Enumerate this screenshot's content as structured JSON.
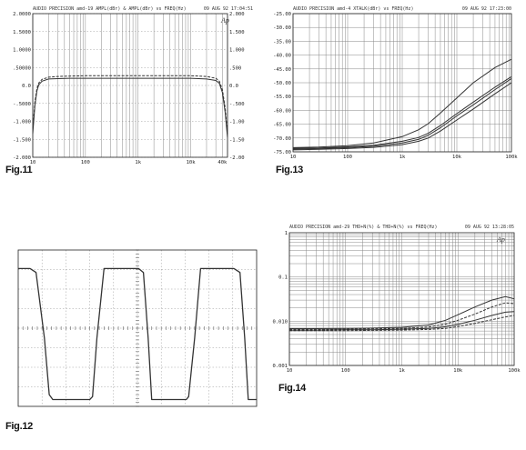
{
  "captions": {
    "fig11": "Fig.11",
    "fig12": "Fig.12",
    "fig13": "Fig.13",
    "fig14": "Fig.14"
  },
  "chart_data": [
    {
      "id": "fig11",
      "type": "line",
      "header_left": "AUDIO PRECISION amd-19 AMPL(dBr) & AMPL(dBr) vs FREQ(Hz)",
      "header_right": "09 AUG 92 17:04:51",
      "logo": "Ap",
      "xscale": "log",
      "xlim": [
        10,
        50000
      ],
      "ylim": [
        -2,
        2
      ],
      "y2lim": [
        -2,
        2
      ],
      "x_ticks": [
        "10",
        "100",
        "1k",
        "10k",
        "40k"
      ],
      "y_ticks": [
        "2.0000",
        "1.5000",
        "1.0000",
        ".50000",
        "0.0",
        "-.5000",
        "-1.000",
        "-1.500",
        "-2.000"
      ],
      "y2_ticks": [
        "2.000",
        "1.500",
        "1.000",
        ".500",
        "0.0",
        "-.500",
        "-1.00",
        "-1.50",
        "-2.00"
      ],
      "x": [
        10,
        11,
        12,
        13,
        15,
        20,
        30,
        50,
        100,
        300,
        1000,
        3000,
        10000,
        20000,
        30000,
        35000,
        40000,
        45000,
        50000
      ],
      "series": [
        {
          "values": [
            -1.35,
            -0.55,
            -0.15,
            0.02,
            0.12,
            0.18,
            0.19,
            0.2,
            0.2,
            0.2,
            0.2,
            0.2,
            0.2,
            0.18,
            0.14,
            0.06,
            -0.2,
            -0.75,
            -1.45
          ],
          "color": "#333333"
        },
        {
          "values": [
            -1.2,
            -0.45,
            -0.08,
            0.07,
            0.17,
            0.23,
            0.25,
            0.26,
            0.27,
            0.27,
            0.27,
            0.27,
            0.27,
            0.25,
            0.2,
            0.12,
            -0.12,
            -0.62,
            -1.35
          ],
          "color": "#666666"
        }
      ]
    },
    {
      "id": "fig12",
      "type": "line",
      "trace": "square wave",
      "x_divisions": 10,
      "y_divisions": 8,
      "ylim": [
        0,
        8
      ],
      "x": [
        0,
        0.5,
        0.75,
        1.1,
        1.3,
        1.45,
        3.0,
        3.12,
        3.3,
        3.6,
        5.05,
        5.25,
        5.45,
        5.6,
        7.05,
        7.15,
        7.4,
        7.65,
        9.05,
        9.3,
        9.5,
        9.65,
        10
      ],
      "series": [
        {
          "values": [
            7.05,
            7.05,
            6.85,
            3.5,
            0.6,
            0.35,
            0.35,
            0.5,
            3.5,
            7.05,
            7.05,
            6.85,
            3.5,
            0.35,
            0.35,
            0.5,
            3.5,
            7.05,
            7.05,
            6.85,
            3.5,
            0.35,
            0.35
          ],
          "color": "#333333"
        }
      ]
    },
    {
      "id": "fig13",
      "type": "line",
      "header_left": "AUDIO PRECISION amd-4 XTALK(dBr) vs FREQ(Hz)",
      "header_right": "09 AUG 92 17:23:00",
      "xscale": "log",
      "xlim": [
        10,
        100000
      ],
      "ylim": [
        -75,
        -25
      ],
      "x_ticks": [
        "10",
        "100",
        "1k",
        "10k",
        "100k"
      ],
      "y_ticks": [
        "-25.00",
        "-30.00",
        "-35.00",
        "-40.00",
        "-45.00",
        "-50.00",
        "-55.00",
        "-60.00",
        "-65.00",
        "-70.00",
        "-75.00"
      ],
      "x": [
        10,
        30,
        100,
        300,
        1000,
        2000,
        3000,
        5000,
        10000,
        20000,
        50000,
        100000
      ],
      "series": [
        {
          "values": [
            -73.5,
            -73.3,
            -72.8,
            -71.8,
            -69.5,
            -67.0,
            -64.8,
            -61.0,
            -55.5,
            -50.0,
            -44.5,
            -41.5
          ],
          "color": "#555555"
        },
        {
          "values": [
            -74.0,
            -73.8,
            -73.5,
            -73.0,
            -71.8,
            -70.5,
            -69.0,
            -66.3,
            -62.0,
            -58.0,
            -52.5,
            -48.5
          ],
          "color": "#333333"
        },
        {
          "values": [
            -73.7,
            -73.6,
            -73.2,
            -72.6,
            -71.2,
            -69.8,
            -68.3,
            -65.5,
            -61.2,
            -57.0,
            -51.6,
            -47.8
          ],
          "color": "#777777"
        },
        {
          "values": [
            -74.3,
            -74.1,
            -73.8,
            -73.4,
            -72.4,
            -71.2,
            -70.0,
            -67.5,
            -63.5,
            -59.5,
            -54.0,
            -50.0
          ],
          "color": "#444444"
        }
      ]
    },
    {
      "id": "fig14",
      "type": "line",
      "header_left": "AUDIO PRECISION amd-29 THD+N(%) & THD+N(%) vs FREQ(Hz)",
      "header_right": "09 AUG 92 13:28:05",
      "logo": "Ap",
      "xscale": "log",
      "yscale": "log",
      "xlim": [
        10,
        100000
      ],
      "ylim": [
        0.001,
        1
      ],
      "x_ticks": [
        "10",
        "100",
        "1k",
        "10k",
        "100k"
      ],
      "y_ticks": [
        "1",
        "0.1",
        "0.010",
        "0.001"
      ],
      "x": [
        10,
        30,
        100,
        300,
        1000,
        3000,
        6000,
        10000,
        20000,
        40000,
        70000,
        100000
      ],
      "series": [
        {
          "values": [
            0.0068,
            0.0068,
            0.0069,
            0.007,
            0.0073,
            0.0082,
            0.0105,
            0.014,
            0.021,
            0.03,
            0.036,
            0.032
          ],
          "color": "#aaaaaa"
        },
        {
          "values": [
            0.0065,
            0.0065,
            0.0066,
            0.0067,
            0.0069,
            0.0074,
            0.0086,
            0.0105,
            0.0145,
            0.021,
            0.026,
            0.025
          ],
          "color": "#999999"
        },
        {
          "values": [
            0.0063,
            0.0063,
            0.0064,
            0.0064,
            0.0066,
            0.0069,
            0.0075,
            0.0085,
            0.0105,
            0.0135,
            0.016,
            0.0165
          ],
          "color": "#555555"
        },
        {
          "values": [
            0.0061,
            0.0061,
            0.0061,
            0.0062,
            0.0063,
            0.0065,
            0.0069,
            0.0076,
            0.0089,
            0.0108,
            0.0125,
            0.0135
          ],
          "color": "#333333"
        }
      ]
    }
  ]
}
